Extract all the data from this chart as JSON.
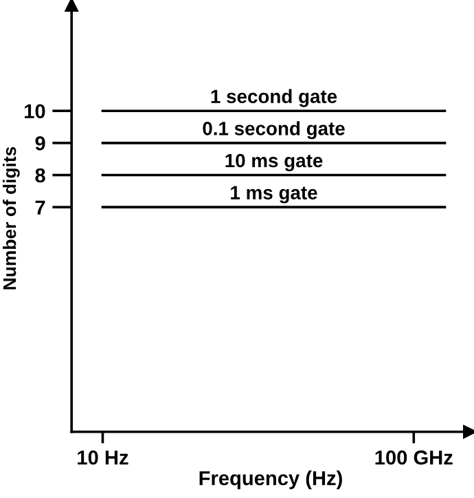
{
  "chart_data": {
    "type": "line",
    "xlabel": "Frequency (Hz)",
    "ylabel": "Number of digits",
    "categories": [
      "10 Hz",
      null,
      null,
      null,
      null,
      null,
      null,
      null,
      null,
      null,
      "100 GHz",
      null
    ],
    "ylim": [
      0,
      13.3
    ],
    "yticks": [
      7,
      8,
      9,
      10
    ],
    "series": [
      {
        "name": "1 second gate",
        "color": "#000000",
        "values": [
          10,
          10,
          10,
          10,
          10,
          10,
          10,
          10,
          10,
          10,
          10,
          10
        ]
      },
      {
        "name": "0.1 second gate",
        "color": "#000000",
        "values": [
          9,
          9,
          9,
          9,
          9,
          9,
          9,
          9,
          9,
          9,
          9,
          9
        ]
      },
      {
        "name": "10 ms gate",
        "color": "#000000",
        "values": [
          8,
          8,
          8,
          8,
          8,
          8,
          8,
          8,
          8,
          8,
          8,
          8
        ]
      },
      {
        "name": "1 ms gate",
        "color": "#000000",
        "values": [
          7,
          7,
          7,
          7,
          7,
          7,
          7,
          7,
          7,
          7,
          7,
          7
        ]
      }
    ],
    "grid": false,
    "legend": false
  }
}
